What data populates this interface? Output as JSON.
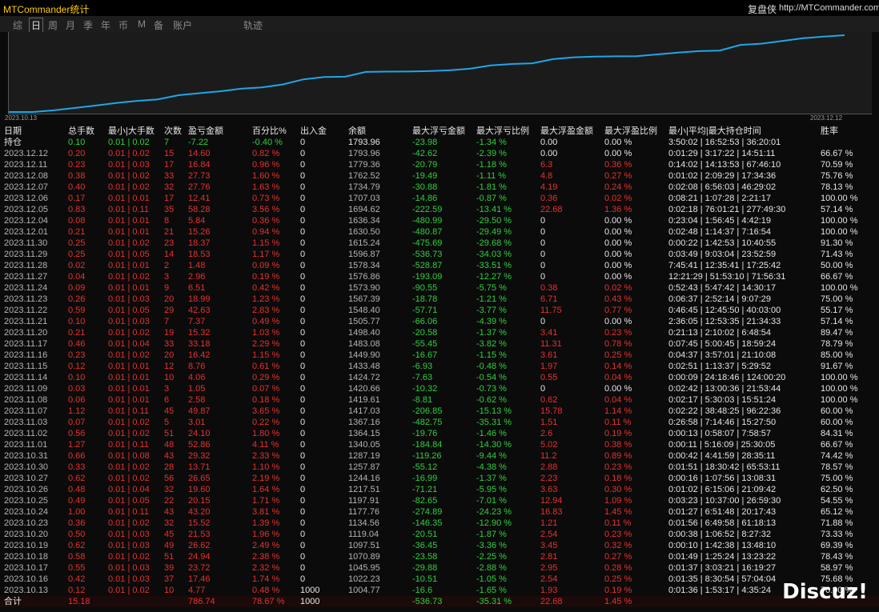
{
  "header": {
    "app_title": "MTCommander统计",
    "site_name": "复盘侠",
    "site_url": "http://MTCommander.com"
  },
  "tabs": [
    "综",
    "日",
    "周",
    "月",
    "季",
    "年",
    "币",
    "M",
    "备",
    "账户",
    "轨迹"
  ],
  "chart": {
    "start_label": "2023.10.13",
    "end_label": "2023.12.12"
  },
  "table": {
    "columns": [
      "日期",
      "总手数",
      "最小|大手数",
      "次数",
      "盈亏金额",
      "百分比%",
      "出入金",
      "余额",
      "最大浮亏金额",
      "最大浮亏比例",
      "最大浮盈金额",
      "最大浮盈比例",
      "最小|平均|最大持仓时间",
      "胜率"
    ],
    "holding": [
      "持仓",
      "0.10",
      "0.01 | 0.02",
      "7",
      "-7.22",
      "-0.40 %",
      "0",
      "1793.96",
      "-23.98",
      "-1.34 %",
      "0.00",
      "0.00 %",
      "3:50:02 | 16:52:53 | 36:20:01",
      null
    ],
    "rows": [
      [
        "2023.12.12",
        "0.20",
        "0.01 | 0.02",
        "15",
        "14.60",
        "0.82 %",
        "0",
        "1793.96",
        "-42.62",
        "-2.39 %",
        "0.00",
        "0.00 %",
        "0:01:29 | 3:17:22 | 14:51:11",
        "66.67 %"
      ],
      [
        "2023.12.11",
        "0.23",
        "0.01 | 0.03",
        "17",
        "16.84",
        "0.96 %",
        "0",
        "1779.36",
        "-20.79",
        "-1.18 %",
        "6.3",
        "0.36 %",
        "0:14:02 | 14:13:53 | 67:46:10",
        "70.59 %"
      ],
      [
        "2023.12.08",
        "0.38",
        "0.01 | 0.02",
        "33",
        "27.73",
        "1.60 %",
        "0",
        "1762.52",
        "-19.49",
        "-1.11 %",
        "4.8",
        "0.27 %",
        "0:01:02 | 2:09:29 | 17:34:36",
        "75.76 %"
      ],
      [
        "2023.12.07",
        "0.40",
        "0.01 | 0.02",
        "32",
        "27.76",
        "1.63 %",
        "0",
        "1734.79",
        "-30.88",
        "-1.81 %",
        "4.19",
        "0.24 %",
        "0:02:08 | 6:56:03 | 46:29:02",
        "78.13 %"
      ],
      [
        "2023.12.06",
        "0.17",
        "0.01 | 0.01",
        "17",
        "12.41",
        "0.73 %",
        "0",
        "1707.03",
        "-14.86",
        "-0.87 %",
        "0.36",
        "0.02 %",
        "0:08:21 | 1:07:28 | 2:21:17",
        "100.00 %"
      ],
      [
        "2023.12.05",
        "0.83",
        "0.01 | 0.11",
        "35",
        "58.28",
        "3.56 %",
        "0",
        "1694.62",
        "-222.59",
        "-13.41 %",
        "22.68",
        "1.36 %",
        "0:02:18 | 76:01:21 | 277:49:30",
        "57.14 %"
      ],
      [
        "2023.12.04",
        "0.08",
        "0.01 | 0.01",
        "8",
        "5.84",
        "0.36 %",
        "0",
        "1636.34",
        "-480.99",
        "-29.50 %",
        "0",
        "0.00 %",
        "0:23:04 | 1:56:45 | 4:42:19",
        "100.00 %"
      ],
      [
        "2023.12.01",
        "0.21",
        "0.01 | 0.01",
        "21",
        "15.26",
        "0.94 %",
        "0",
        "1630.50",
        "-480.87",
        "-29.49 %",
        "0",
        "0.00 %",
        "0:02:48 | 1:14:37 | 7:16:54",
        "100.00 %"
      ],
      [
        "2023.11.30",
        "0.25",
        "0.01 | 0.02",
        "23",
        "18.37",
        "1.15 %",
        "0",
        "1615.24",
        "-475.69",
        "-29.68 %",
        "0",
        "0.00 %",
        "0:00:22 | 1:42:53 | 10:40:55",
        "91.30 %"
      ],
      [
        "2023.11.29",
        "0.25",
        "0.01 | 0.05",
        "14",
        "18.53",
        "1.17 %",
        "0",
        "1596.87",
        "-536.73",
        "-34.03 %",
        "0",
        "0.00 %",
        "0:03:49 | 9:03:04 | 23:52:59",
        "71.43 %"
      ],
      [
        "2023.11.28",
        "0.02",
        "0.01 | 0.01",
        "2",
        "1.48",
        "0.09 %",
        "0",
        "1578.34",
        "-528.87",
        "-33.51 %",
        "0",
        "0.00 %",
        "7:45:41 | 12:35:41 | 17:25:42",
        "50.00 %"
      ],
      [
        "2023.11.27",
        "0.04",
        "0.01 | 0.02",
        "3",
        "2.96",
        "0.19 %",
        "0",
        "1576.86",
        "-193.09",
        "-12.27 %",
        "0",
        "0.00 %",
        "12:21:29 | 51:53:10 | 71:56:31",
        "66.67 %"
      ],
      [
        "2023.11.24",
        "0.09",
        "0.01 | 0.01",
        "9",
        "6.51",
        "0.42 %",
        "0",
        "1573.90",
        "-90.55",
        "-5.75 %",
        "0.38",
        "0.02 %",
        "0:52:43 | 5:47:42 | 14:30:17",
        "100.00 %"
      ],
      [
        "2023.11.23",
        "0.26",
        "0.01 | 0.03",
        "20",
        "18.99",
        "1.23 %",
        "0",
        "1567.39",
        "-18.78",
        "-1.21 %",
        "6.71",
        "0.43 %",
        "0:06:37 | 2:52:14 | 9:07:29",
        "75.00 %"
      ],
      [
        "2023.11.22",
        "0.59",
        "0.01 | 0.05",
        "29",
        "42.63",
        "2.83 %",
        "0",
        "1548.40",
        "-57.71",
        "-3.77 %",
        "11.75",
        "0.77 %",
        "0:46:45 | 12:45:50 | 40:03:00",
        "55.17 %"
      ],
      [
        "2023.11.21",
        "0.10",
        "0.01 | 0.03",
        "7",
        "7.37",
        "0.49 %",
        "0",
        "1505.77",
        "-66.06",
        "-4.39 %",
        "0",
        "0.00 %",
        "2:36:05 | 12:53:35 | 21:34:33",
        "57.14 %"
      ],
      [
        "2023.11.20",
        "0.21",
        "0.01 | 0.02",
        "19",
        "15.32",
        "1.03 %",
        "0",
        "1498.40",
        "-20.58",
        "-1.37 %",
        "3.41",
        "0.23 %",
        "0:21:13 | 2:10:02 | 6:48:54",
        "89.47 %"
      ],
      [
        "2023.11.17",
        "0.46",
        "0.01 | 0.04",
        "33",
        "33.18",
        "2.29 %",
        "0",
        "1483.08",
        "-55.45",
        "-3.82 %",
        "11.31",
        "0.78 %",
        "0:07:45 | 5:00:45 | 18:59:24",
        "78.79 %"
      ],
      [
        "2023.11.16",
        "0.23",
        "0.01 | 0.02",
        "20",
        "16.42",
        "1.15 %",
        "0",
        "1449.90",
        "-16.67",
        "-1.15 %",
        "3.61",
        "0.25 %",
        "0:04:37 | 3:57:01 | 21:10:08",
        "85.00 %"
      ],
      [
        "2023.11.15",
        "0.12",
        "0.01 | 0.01",
        "12",
        "8.76",
        "0.61 %",
        "0",
        "1433.48",
        "-6.93",
        "-0.48 %",
        "1.97",
        "0.14 %",
        "0:02:51 | 1:13:37 | 5:29:52",
        "91.67 %"
      ],
      [
        "2023.11.14",
        "0.10",
        "0.01 | 0.01",
        "10",
        "4.06",
        "0.29 %",
        "0",
        "1424.72",
        "-7.63",
        "-0.54 %",
        "0.55",
        "0.04 %",
        "0:00:09 | 24:18:46 | 124:00:20",
        "100.00 %"
      ],
      [
        "2023.11.09",
        "0.03",
        "0.01 | 0.01",
        "3",
        "1.05",
        "0.07 %",
        "0",
        "1420.66",
        "-10.32",
        "-0.73 %",
        "0",
        "0.00 %",
        "0:02:42 | 13:00:36 | 21:53:44",
        "100.00 %"
      ],
      [
        "2023.11.08",
        "0.06",
        "0.01 | 0.01",
        "6",
        "2.58",
        "0.18 %",
        "0",
        "1419.61",
        "-8.81",
        "-0.62 %",
        "0.62",
        "0.04 %",
        "0:02:17 | 5:30:03 | 15:51:24",
        "100.00 %"
      ],
      [
        "2023.11.07",
        "1.12",
        "0.01 | 0.11",
        "45",
        "49.87",
        "3.65 %",
        "0",
        "1417.03",
        "-206.85",
        "-15.13 %",
        "15.78",
        "1.14 %",
        "0:02:22 | 38:48:25 | 96:22:36",
        "60.00 %"
      ],
      [
        "2023.11.03",
        "0.07",
        "0.01 | 0.02",
        "5",
        "3.01",
        "0.22 %",
        "0",
        "1367.16",
        "-482.75",
        "-35.31 %",
        "1.51",
        "0.11 %",
        "0:26:58 | 7:14:46 | 15:27:50",
        "60.00 %"
      ],
      [
        "2023.11.02",
        "0.56",
        "0.01 | 0.02",
        "51",
        "24.10",
        "1.80 %",
        "0",
        "1364.15",
        "-19.76",
        "-1.46 %",
        "2.6",
        "0.19 %",
        "0:00:13 | 0:58:07 | 7:58:57",
        "84.31 %"
      ],
      [
        "2023.11.01",
        "1.27",
        "0.01 | 0.11",
        "48",
        "52.86",
        "4.11 %",
        "0",
        "1340.05",
        "-184.84",
        "-14.30 %",
        "5.02",
        "0.38 %",
        "0:00:11 | 5:16:09 | 25:30:05",
        "66.67 %"
      ],
      [
        "2023.10.31",
        "0.66",
        "0.01 | 0.08",
        "43",
        "29.32",
        "2.33 %",
        "0",
        "1287.19",
        "-119.26",
        "-9.44 %",
        "11.2",
        "0.89 %",
        "0:00:42 | 4:41:59 | 28:35:11",
        "74.42 %"
      ],
      [
        "2023.10.30",
        "0.33",
        "0.01 | 0.02",
        "28",
        "13.71",
        "1.10 %",
        "0",
        "1257.87",
        "-55.12",
        "-4.38 %",
        "2.88",
        "0.23 %",
        "0:01:51 | 18:30:42 | 65:53:11",
        "78.57 %"
      ],
      [
        "2023.10.27",
        "0.62",
        "0.01 | 0.02",
        "56",
        "26.65",
        "2.19 %",
        "0",
        "1244.16",
        "-16.99",
        "-1.37 %",
        "2.23",
        "0.18 %",
        "0:00:16 | 1:07:56 | 13:08:31",
        "75.00 %"
      ],
      [
        "2023.10.26",
        "0.48",
        "0.01 | 0.04",
        "32",
        "19.60",
        "1.64 %",
        "0",
        "1217.51",
        "-71.21",
        "-5.95 %",
        "3.63",
        "0.30 %",
        "0:01:02 | 6:15:06 | 21:09:42",
        "62.50 %"
      ],
      [
        "2023.10.25",
        "0.49",
        "0.01 | 0.05",
        "22",
        "20.15",
        "1.71 %",
        "0",
        "1197.91",
        "-82.65",
        "-7.01 %",
        "12.94",
        "1.09 %",
        "0:03:23 | 10:37:00 | 26:59:30",
        "54.55 %"
      ],
      [
        "2023.10.24",
        "1.00",
        "0.01 | 0.11",
        "43",
        "43.20",
        "3.81 %",
        "0",
        "1177.76",
        "-274.89",
        "-24.23 %",
        "16.83",
        "1.45 %",
        "0:01:27 | 6:51:48 | 20:17:43",
        "65.12 %"
      ],
      [
        "2023.10.23",
        "0.36",
        "0.01 | 0.02",
        "32",
        "15.52",
        "1.39 %",
        "0",
        "1134.56",
        "-146.35",
        "-12.90 %",
        "1.21",
        "0.11 %",
        "0:01:56 | 6:49:58 | 61:18:13",
        "71.88 %"
      ],
      [
        "2023.10.20",
        "0.50",
        "0.01 | 0.03",
        "45",
        "21.53",
        "1.96 %",
        "0",
        "1119.04",
        "-20.51",
        "-1.87 %",
        "2.54",
        "0.23 %",
        "0:00:38 | 1:06:52 | 8:27:32",
        "73.33 %"
      ],
      [
        "2023.10.19",
        "0.62",
        "0.01 | 0.03",
        "49",
        "26.62",
        "2.49 %",
        "0",
        "1097.51",
        "-36.45",
        "-3.36 %",
        "3.45",
        "0.32 %",
        "0:00:10 | 1:42:38 | 13:48:10",
        "69.39 %"
      ],
      [
        "2023.10.18",
        "0.58",
        "0.01 | 0.02",
        "51",
        "24.94",
        "2.38 %",
        "0",
        "1070.89",
        "-23.58",
        "-2.25 %",
        "2.81",
        "0.27 %",
        "0:01:49 | 1:25:24 | 13:23:22",
        "78.43 %"
      ],
      [
        "2023.10.17",
        "0.55",
        "0.01 | 0.03",
        "39",
        "23.72",
        "2.32 %",
        "0",
        "1045.95",
        "-29.88",
        "-2.88 %",
        "2.95",
        "0.28 %",
        "0:01:37 | 3:03:21 | 16:19:27",
        "58.97 %"
      ],
      [
        "2023.10.16",
        "0.42",
        "0.01 | 0.03",
        "37",
        "17.46",
        "1.74 %",
        "0",
        "1022.23",
        "-10.51",
        "-1.05 %",
        "2.54",
        "0.25 %",
        "0:01:35 | 8:30:54 | 57:04:04",
        "75.68 %"
      ],
      [
        "2023.10.13",
        "0.12",
        "0.01 | 0.02",
        "10",
        "4.77",
        "0.48 %",
        "1000",
        "1004.77",
        "-16.6",
        "-1.65 %",
        "1.93",
        "0.19 %",
        "0:01:36 | 1:53:17 | 4:35:24",
        "70.00 %"
      ]
    ],
    "total": [
      "合计",
      "15.18",
      null,
      null,
      "786.74",
      "78.67 %",
      "1000",
      null,
      "-536.73",
      "-35.31 %",
      "22.68",
      "1.45 %",
      null,
      null
    ]
  },
  "watermark": "Discuz!"
}
